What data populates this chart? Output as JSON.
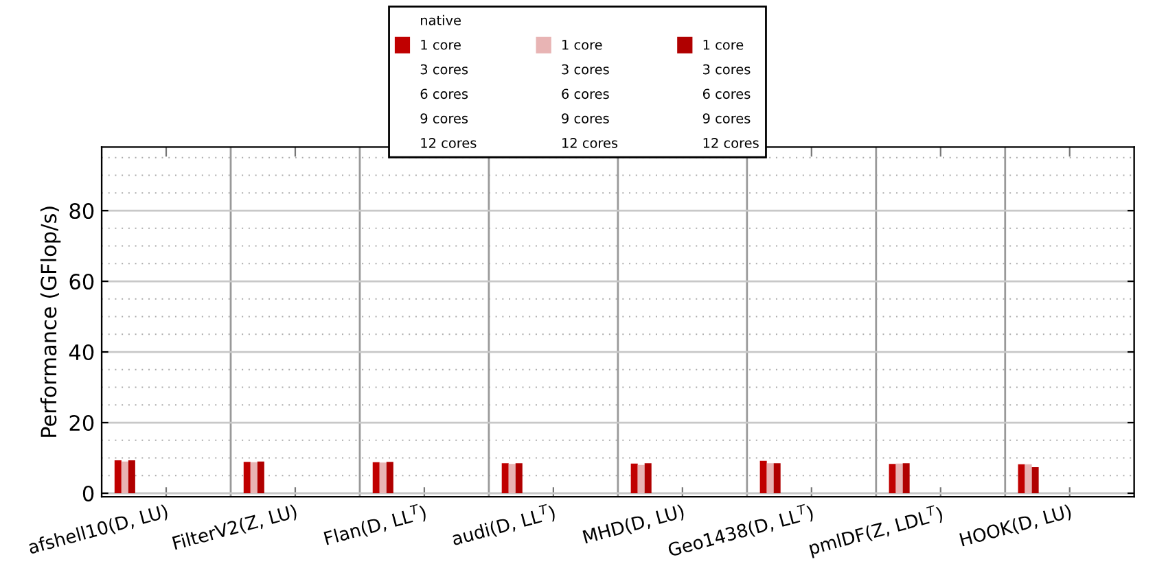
{
  "chart_data": {
    "type": "bar",
    "categories": [
      "afshell10(D, LU)",
      "FilterV2(Z, LU)",
      "Flan(D, LL$^{T}$)",
      "audi(D, LL$^{T}$)",
      "MHD(D, LU)",
      "Geo1438(D, LL$^{T}$)",
      "pmlDF(Z, LDL$^{T}$)",
      "HOOK(D, LU)"
    ],
    "ylabel": "Performance (GFlop/s)",
    "ylim": [
      -1,
      98
    ],
    "yticks": [
      0,
      20,
      40,
      60,
      80
    ],
    "grid": true,
    "legend": "top",
    "annotations": [
      "native",
      "3 cores",
      "6 cores",
      "9 cores",
      "12 cores",
      "3 cores",
      "6 cores",
      "9 cores",
      "12 cores",
      "3 cores",
      "6 cores",
      "9 cores",
      "12 cores"
    ],
    "series": [
      {
        "name": "1 core",
        "color": "#c00000",
        "values": [
          9.3,
          8.9,
          8.8,
          8.5,
          8.4,
          9.2,
          8.3,
          8.2
        ]
      },
      {
        "name": "1 core",
        "color": "#e8b4b4",
        "values": [
          9.0,
          8.8,
          8.7,
          8.3,
          8.0,
          8.5,
          8.4,
          8.2
        ]
      },
      {
        "name": "1 core",
        "color": "#b00000",
        "values": [
          9.3,
          9.0,
          8.9,
          8.5,
          8.5,
          8.5,
          8.5,
          7.4
        ]
      }
    ]
  }
}
